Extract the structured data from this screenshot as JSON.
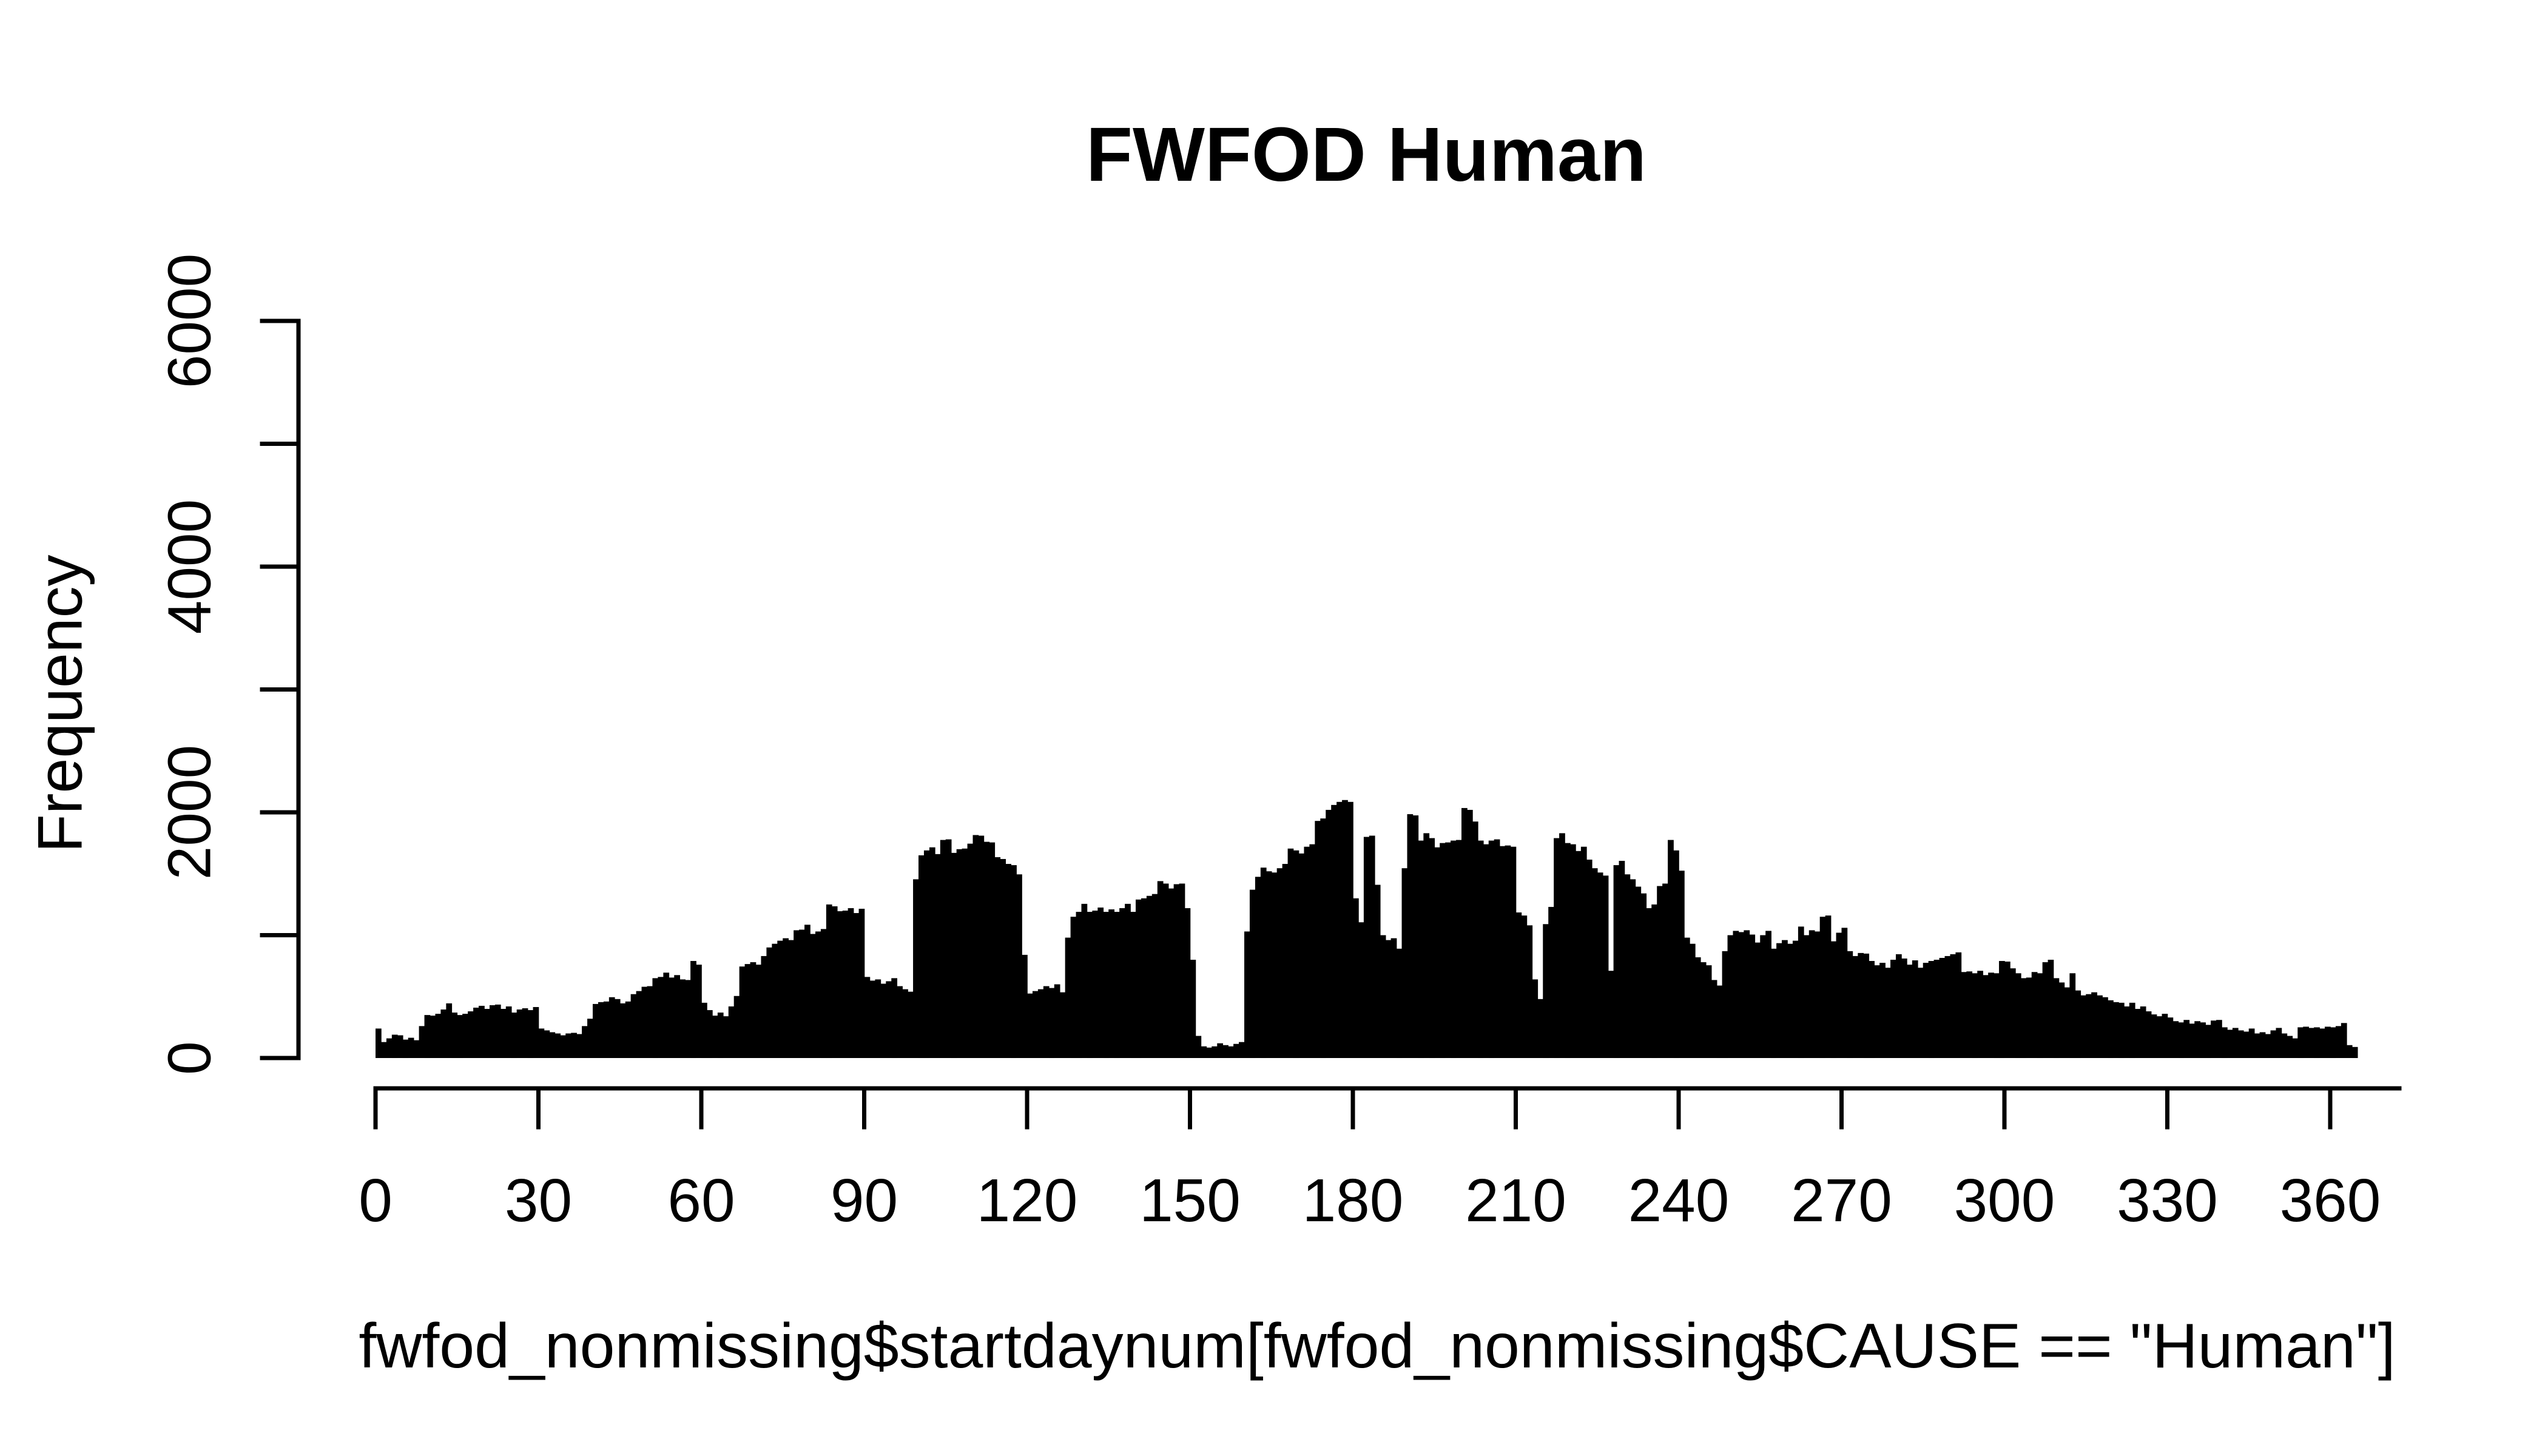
{
  "page": {
    "background_color": "#ffffff",
    "foreground_color": "#000000"
  },
  "chart_data": {
    "type": "bar",
    "subtype": "histogram",
    "title": "FWFOD Human",
    "xlabel": "fwfod_nonmissing$startdaynum[fwfod_nonmissing$CAUSE == \"Human\"]",
    "ylabel": "Frequency",
    "xlim": [
      0,
      365
    ],
    "ylim": [
      0,
      6000
    ],
    "grid": "off",
    "legend": "none",
    "bar_color": "#000000",
    "x_ticks": [
      0,
      30,
      60,
      90,
      120,
      150,
      180,
      210,
      240,
      270,
      300,
      330,
      360
    ],
    "y_ticks": [
      {
        "value": 0,
        "label": "0"
      },
      {
        "value": 1000,
        "label": ""
      },
      {
        "value": 2000,
        "label": "2000"
      },
      {
        "value": 3000,
        "label": ""
      },
      {
        "value": 4000,
        "label": "4000"
      },
      {
        "value": 5000,
        "label": ""
      },
      {
        "value": 6000,
        "label": "6000"
      }
    ],
    "bin_width_days": 1,
    "first_bin_day": 0,
    "values": [
      240,
      130,
      160,
      190,
      185,
      150,
      165,
      145,
      260,
      350,
      345,
      360,
      395,
      445,
      370,
      350,
      360,
      380,
      410,
      425,
      400,
      430,
      435,
      400,
      420,
      370,
      395,
      405,
      390,
      415,
      240,
      225,
      210,
      200,
      185,
      200,
      205,
      195,
      260,
      320,
      440,
      455,
      460,
      495,
      480,
      445,
      460,
      520,
      545,
      580,
      585,
      650,
      660,
      695,
      655,
      675,
      640,
      635,
      790,
      760,
      450,
      390,
      345,
      370,
      340,
      420,
      505,
      745,
      765,
      780,
      760,
      830,
      900,
      930,
      955,
      975,
      960,
      1040,
      1045,
      1085,
      1010,
      1030,
      1050,
      1250,
      1235,
      1195,
      1200,
      1220,
      1180,
      1215,
      660,
      630,
      640,
      605,
      625,
      650,
      585,
      560,
      540,
      1455,
      1650,
      1690,
      1715,
      1660,
      1775,
      1780,
      1670,
      1700,
      1705,
      1745,
      1815,
      1810,
      1760,
      1755,
      1635,
      1620,
      1580,
      1570,
      1495,
      840,
      525,
      545,
      560,
      585,
      570,
      600,
      535,
      980,
      1150,
      1190,
      1255,
      1190,
      1200,
      1225,
      1190,
      1210,
      1190,
      1220,
      1255,
      1190,
      1290,
      1300,
      1320,
      1335,
      1440,
      1420,
      1380,
      1415,
      1420,
      1220,
      800,
      180,
      95,
      85,
      95,
      120,
      105,
      95,
      115,
      130,
      1030,
      1370,
      1475,
      1550,
      1520,
      1510,
      1545,
      1580,
      1705,
      1690,
      1665,
      1720,
      1740,
      1930,
      1950,
      2020,
      2060,
      2085,
      2100,
      2085,
      1300,
      1105,
      1800,
      1810,
      1410,
      1000,
      960,
      975,
      890,
      1545,
      1985,
      1975,
      1770,
      1830,
      1790,
      1715,
      1750,
      1755,
      1770,
      1775,
      2035,
      2020,
      1925,
      1770,
      1740,
      1770,
      1780,
      1725,
      1730,
      1720,
      1185,
      1160,
      1080,
      640,
      480,
      1090,
      1230,
      1790,
      1830,
      1750,
      1740,
      1685,
      1720,
      1615,
      1545,
      1510,
      1485,
      710,
      1570,
      1605,
      1495,
      1455,
      1395,
      1340,
      1220,
      1250,
      1400,
      1420,
      1775,
      1690,
      1525,
      980,
      930,
      820,
      780,
      755,
      635,
      590,
      870,
      1000,
      1035,
      1025,
      1040,
      1005,
      940,
      1000,
      1035,
      890,
      935,
      960,
      930,
      955,
      1070,
      1000,
      1040,
      1030,
      1150,
      1160,
      950,
      1020,
      1060,
      870,
      830,
      855,
      850,
      790,
      755,
      775,
      735,
      800,
      845,
      810,
      760,
      795,
      735,
      775,
      790,
      800,
      815,
      830,
      845,
      860,
      700,
      705,
      690,
      710,
      675,
      695,
      690,
      790,
      785,
      730,
      690,
      650,
      655,
      700,
      690,
      780,
      800,
      650,
      615,
      575,
      690,
      550,
      510,
      520,
      535,
      510,
      495,
      470,
      455,
      450,
      420,
      450,
      400,
      420,
      380,
      355,
      340,
      360,
      330,
      300,
      290,
      310,
      280,
      300,
      290,
      270,
      305,
      310,
      250,
      230,
      245,
      225,
      215,
      240,
      200,
      210,
      195,
      225,
      245,
      200,
      180,
      160,
      250,
      255,
      245,
      250,
      240,
      255,
      250,
      260,
      285,
      105,
      90
    ]
  }
}
